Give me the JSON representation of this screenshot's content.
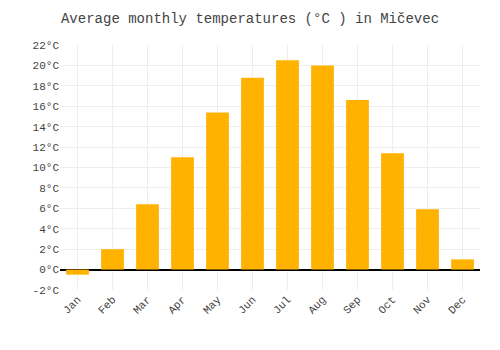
{
  "chart_data": {
    "type": "bar",
    "title": "Average monthly temperatures (°C ) in Mičevec",
    "categories": [
      "Jan",
      "Feb",
      "Mar",
      "Apr",
      "May",
      "Jun",
      "Jul",
      "Aug",
      "Sep",
      "Oct",
      "Nov",
      "Dec"
    ],
    "values": [
      -0.5,
      2.0,
      6.4,
      11.0,
      15.4,
      18.8,
      20.5,
      20.0,
      16.6,
      11.4,
      5.9,
      1.0
    ],
    "color": "#FFB300",
    "ylim": [
      -2,
      22
    ],
    "yticks": [
      {
        "value": -2,
        "label": "-2°C"
      },
      {
        "value": 0,
        "label": "0°C"
      },
      {
        "value": 2,
        "label": "2°C"
      },
      {
        "value": 4,
        "label": "4°C"
      },
      {
        "value": 6,
        "label": "6°C"
      },
      {
        "value": 8,
        "label": "8°C"
      },
      {
        "value": 10,
        "label": "10°C"
      },
      {
        "value": 12,
        "label": "12°C"
      },
      {
        "value": 14,
        "label": "14°C"
      },
      {
        "value": 16,
        "label": "16°C"
      },
      {
        "value": 18,
        "label": "18°C"
      },
      {
        "value": 20,
        "label": "20°C"
      },
      {
        "value": 22,
        "label": "22°C"
      }
    ],
    "grid": true
  }
}
